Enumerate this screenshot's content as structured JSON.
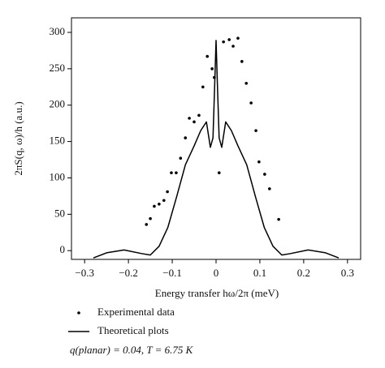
{
  "chart_data": {
    "type": "scatter",
    "x_label": "Energy transfer hω/2π (meV)",
    "y_label": "2πS(q, ω)/h (a.u.)",
    "annotation": "q(planar) = 0.04, T = 6.75 K",
    "xlim": [
      -0.33,
      0.33
    ],
    "ylim": [
      -12,
      320
    ],
    "xticks": [
      {
        "value": -0.3,
        "label": "−0.3"
      },
      {
        "value": -0.2,
        "label": "−0.2"
      },
      {
        "value": -0.1,
        "label": "−0.1"
      },
      0,
      0.1,
      0.2,
      0.3
    ],
    "yticks": [
      0,
      50,
      100,
      150,
      200,
      250,
      300
    ],
    "legend": "below",
    "series": [
      {
        "name": "Experimental data",
        "type": "scatter",
        "color": "#000000",
        "x": [
          -0.159,
          -0.15,
          -0.141,
          -0.13,
          -0.119,
          -0.111,
          -0.102,
          -0.091,
          -0.081,
          -0.07,
          -0.061,
          -0.05,
          -0.039,
          -0.03,
          -0.02,
          -0.009,
          -0.004,
          0.007,
          0.017,
          0.03,
          0.039,
          0.05,
          0.059,
          0.069,
          0.08,
          0.091,
          0.098,
          0.111,
          0.122,
          0.143
        ],
        "values": [
          36,
          44,
          61,
          64,
          69,
          81,
          107,
          107,
          127,
          155,
          182,
          177,
          186,
          225,
          267,
          250,
          238,
          107,
          287,
          290,
          281,
          292,
          260,
          230,
          203,
          165,
          122,
          105,
          85,
          43
        ]
      },
      {
        "name": "Theoretical plots",
        "type": "line",
        "color": "#000000",
        "x": [
          -0.28,
          -0.25,
          -0.21,
          -0.17,
          -0.15,
          -0.13,
          -0.11,
          -0.09,
          -0.07,
          -0.05,
          -0.035,
          -0.022,
          -0.013,
          -0.007,
          -0.003,
          0,
          0.003,
          0.007,
          0.013,
          0.022,
          0.035,
          0.05,
          0.07,
          0.09,
          0.11,
          0.13,
          0.15,
          0.17,
          0.21,
          0.25,
          0.28
        ],
        "values": [
          -10,
          -3,
          1,
          -4,
          -6,
          6,
          32,
          74,
          118,
          144,
          165,
          177,
          142,
          155,
          230,
          289,
          230,
          155,
          142,
          177,
          165,
          144,
          118,
          74,
          32,
          6,
          -6,
          -4,
          1,
          -3,
          -10
        ]
      }
    ]
  }
}
